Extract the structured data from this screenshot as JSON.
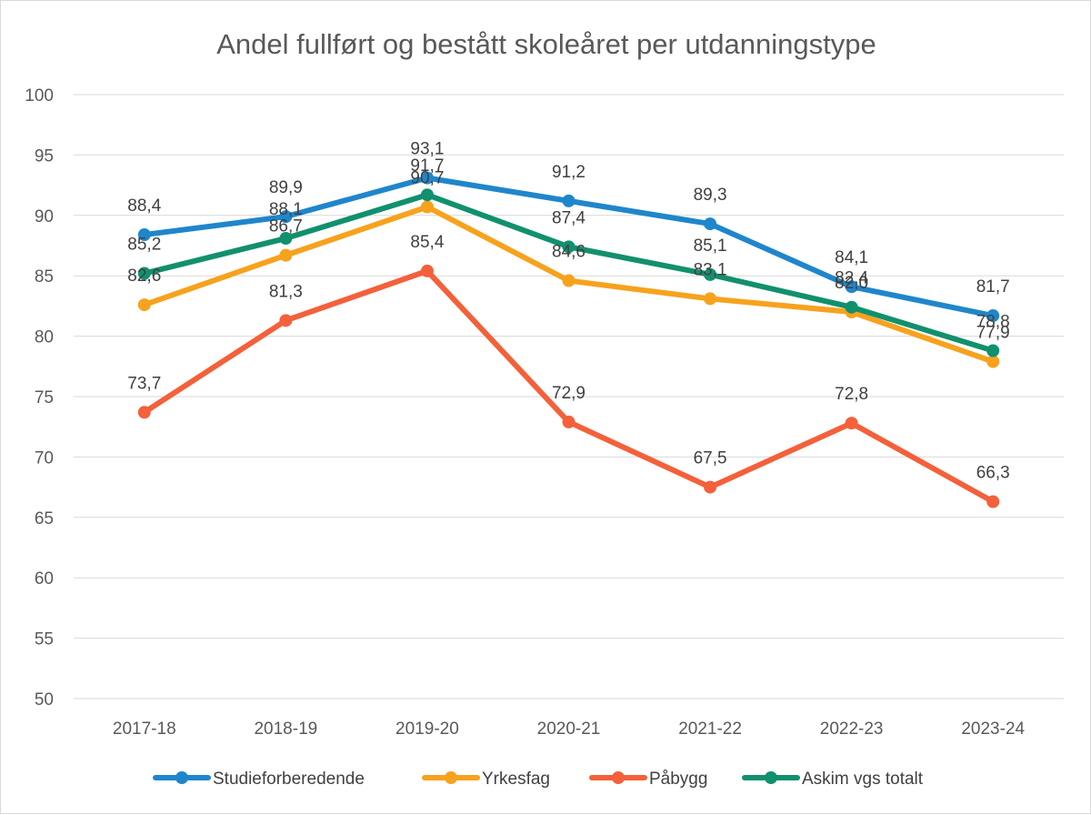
{
  "chart_data": {
    "type": "line",
    "title": "Andel fullført og bestått skoleåret per utdanningstype",
    "xlabel": "",
    "ylabel": "",
    "categories": [
      "2017-18",
      "2018-19",
      "2019-20",
      "2020-21",
      "2021-22",
      "2022-23",
      "2023-24"
    ],
    "ylim": [
      50,
      100
    ],
    "yticks": [
      50,
      55,
      60,
      65,
      70,
      75,
      80,
      85,
      90,
      95,
      100
    ],
    "grid": true,
    "legend_position": "bottom",
    "series": [
      {
        "name": "Studieforberedende",
        "color": "#1f86cc",
        "values": [
          88.4,
          89.9,
          93.1,
          91.2,
          89.3,
          84.1,
          81.7
        ],
        "labels": [
          "88,4",
          "89,9",
          "93,1",
          "91,2",
          "89,3",
          "84,1",
          "81,7"
        ]
      },
      {
        "name": "Yrkesfag",
        "color": "#f7a21d",
        "values": [
          82.6,
          86.7,
          90.7,
          84.6,
          83.1,
          82.0,
          77.9
        ],
        "labels": [
          "82,6",
          "86,7",
          "90,7",
          "84,6",
          "83,1",
          "82,0",
          "77,9"
        ]
      },
      {
        "name": "Påbygg",
        "color": "#f4603a",
        "values": [
          73.7,
          81.3,
          85.4,
          72.9,
          67.5,
          72.8,
          66.3
        ],
        "labels": [
          "73,7",
          "81,3",
          "85,4",
          "72,9",
          "67,5",
          "72,8",
          "66,3"
        ]
      },
      {
        "name": "Askim vgs totalt",
        "color": "#11906e",
        "values": [
          85.2,
          88.1,
          91.7,
          87.4,
          85.1,
          82.4,
          78.8
        ],
        "labels": [
          "85,2",
          "88,1",
          "91,7",
          "87,4",
          "85,1",
          "82,4",
          "78,8"
        ]
      }
    ]
  }
}
